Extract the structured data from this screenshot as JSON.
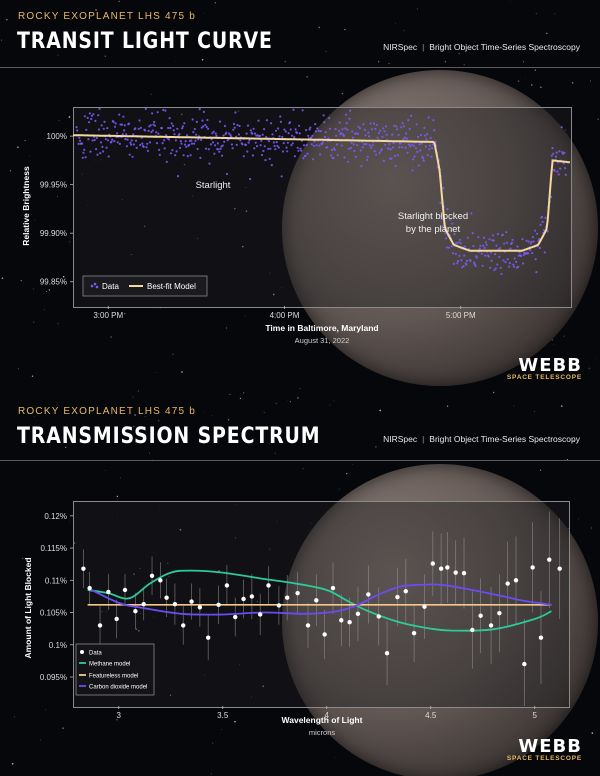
{
  "top": {
    "kicker": "ROCKY EXOPLANET LHS 475 b",
    "title": "TRANSIT LIGHT CURVE",
    "instrument": "NIRSpec",
    "mode": "Bright Object Time-Series Spectroscopy",
    "branding": {
      "name": "WEBB",
      "sub": "SPACE TELESCOPE"
    }
  },
  "bottom": {
    "kicker": "ROCKY EXOPLANET LHS 475 b",
    "title": "TRANSMISSION SPECTRUM",
    "instrument": "NIRSpec",
    "mode": "Bright Object Time-Series Spectroscopy",
    "branding": {
      "name": "WEBB",
      "sub": "SPACE TELESCOPE"
    }
  },
  "colors": {
    "data": "#7b5cff",
    "model": "#f5d7a0",
    "methane": "#2ec99a",
    "featureless": "#f5c88a",
    "co2": "#6a4cf0",
    "accent": "#e9b866"
  },
  "chart_data": [
    {
      "type": "scatter",
      "title": "Transit Light Curve",
      "xlabel": "Time in Baltimore, Maryland",
      "xsublabel": "August 31, 2022",
      "ylabel": "Relative Brightness",
      "xlim": [
        2.8,
        5.62
      ],
      "ylim": [
        99.825,
        100.03
      ],
      "xticks": [
        3.0,
        4.0,
        5.0
      ],
      "xtick_labels": [
        "3:00 PM",
        "4:00 PM",
        "5:00 PM"
      ],
      "yticks": [
        99.85,
        99.9,
        99.95,
        100.0
      ],
      "ytick_labels": [
        "99.85%",
        "99.90%",
        "99.95%",
        "100%"
      ],
      "model": {
        "name": "Best-fit Model",
        "x": [
          2.8,
          4.85,
          4.88,
          4.91,
          4.96,
          5.05,
          5.35,
          5.44,
          5.49,
          5.52,
          5.62
        ],
        "y": [
          100.001,
          99.994,
          99.965,
          99.905,
          99.888,
          99.882,
          99.882,
          99.888,
          99.905,
          99.975,
          99.973
        ]
      },
      "data_series": {
        "name": "Data",
        "n_points": 700,
        "scatter": 0.012
      },
      "annotations": [
        "Starlight",
        "Starlight blocked",
        "by the planet"
      ],
      "legend": [
        "Data",
        "Best-fit Model"
      ],
      "legend_position": "bottom-left"
    },
    {
      "type": "line",
      "title": "Transmission Spectrum",
      "xlabel": "Wavelength of Light",
      "xsublabel": "microns",
      "ylabel": "Amount of Light Blocked",
      "xlim": [
        2.78,
        5.16
      ],
      "ylim": [
        0.0905,
        0.1223
      ],
      "xticks": [
        3.0,
        3.5,
        4.0,
        4.5,
        5.0
      ],
      "xtick_labels": [
        "3",
        "3.5",
        "4",
        "4.5",
        "5"
      ],
      "yticks": [
        0.095,
        0.1,
        0.105,
        0.11,
        0.115,
        0.12
      ],
      "ytick_labels": [
        "0.095%",
        "0.1%",
        "0.105%",
        "0.11%",
        "0.115%",
        "0.12%"
      ],
      "series": [
        {
          "name": "Methane model",
          "x": [
            2.85,
            2.95,
            3.05,
            3.15,
            3.25,
            3.35,
            3.5,
            3.7,
            3.85,
            4.0,
            4.1,
            4.2,
            4.35,
            4.5,
            4.6,
            4.8,
            5.0,
            5.08
          ],
          "y": [
            0.1085,
            0.108,
            0.1072,
            0.1095,
            0.1112,
            0.1115,
            0.1112,
            0.1102,
            0.1095,
            0.1085,
            0.1068,
            0.1052,
            0.1035,
            0.1025,
            0.1022,
            0.1024,
            0.104,
            0.1052
          ]
        },
        {
          "name": "Featureless model",
          "x": [
            2.85,
            5.08
          ],
          "y": [
            0.1062,
            0.1062
          ]
        },
        {
          "name": "Carbon dioxide model",
          "x": [
            2.85,
            3.0,
            3.1,
            3.3,
            3.5,
            3.7,
            3.9,
            4.05,
            4.15,
            4.25,
            4.35,
            4.45,
            4.55,
            4.7,
            4.85,
            4.95,
            5.08
          ],
          "y": [
            0.1088,
            0.1065,
            0.1058,
            0.1048,
            0.1047,
            0.105,
            0.1048,
            0.1052,
            0.1062,
            0.1078,
            0.109,
            0.1093,
            0.1093,
            0.1085,
            0.1075,
            0.1068,
            0.1062
          ]
        }
      ],
      "data_points": {
        "x": [
          2.83,
          2.86,
          2.91,
          2.95,
          2.99,
          3.03,
          3.08,
          3.12,
          3.16,
          3.2,
          3.23,
          3.27,
          3.31,
          3.35,
          3.39,
          3.43,
          3.48,
          3.52,
          3.56,
          3.6,
          3.64,
          3.68,
          3.72,
          3.77,
          3.81,
          3.86,
          3.91,
          3.95,
          3.99,
          4.03,
          4.07,
          4.11,
          4.15,
          4.2,
          4.25,
          4.29,
          4.34,
          4.38,
          4.42,
          4.47,
          4.51,
          4.55,
          4.58,
          4.62,
          4.66,
          4.7,
          4.74,
          4.79,
          4.83,
          4.87,
          4.91,
          4.95,
          4.99,
          5.03,
          5.07,
          5.12
        ],
        "y": [
          0.1118,
          0.1088,
          0.103,
          0.1082,
          0.104,
          0.1085,
          0.1052,
          0.1063,
          0.1107,
          0.11,
          0.1073,
          0.1063,
          0.103,
          0.1067,
          0.1058,
          0.1011,
          0.1062,
          0.1092,
          0.1043,
          0.1071,
          0.1075,
          0.1047,
          0.1092,
          0.1061,
          0.1073,
          0.108,
          0.103,
          0.1069,
          0.1016,
          0.1088,
          0.1038,
          0.1035,
          0.1048,
          0.1078,
          0.1044,
          0.0987,
          0.1074,
          0.1083,
          0.1018,
          0.1059,
          0.1126,
          0.1118,
          0.112,
          0.1112,
          0.1111,
          0.1023,
          0.1045,
          0.103,
          0.1049,
          0.1095,
          0.11,
          0.097,
          0.112,
          0.1011,
          0.1132,
          0.1118
        ],
        "err": [
          0.003,
          0.0025,
          0.003,
          0.0028,
          0.003,
          0.0025,
          0.0028,
          0.0025,
          0.003,
          0.0028,
          0.003,
          0.0032,
          0.003,
          0.0028,
          0.003,
          0.0035,
          0.003,
          0.0032,
          0.003,
          0.003,
          0.0035,
          0.0032,
          0.003,
          0.003,
          0.0035,
          0.0033,
          0.0035,
          0.004,
          0.0038,
          0.004,
          0.004,
          0.0038,
          0.0042,
          0.0045,
          0.0045,
          0.005,
          0.0045,
          0.005,
          0.0045,
          0.005,
          0.005,
          0.0055,
          0.0055,
          0.005,
          0.0055,
          0.006,
          0.0058,
          0.006,
          0.006,
          0.0065,
          0.0068,
          0.007,
          0.007,
          0.0072,
          0.0075,
          0.0078
        ]
      },
      "legend": [
        "Data",
        "Methane model",
        "Featureless model",
        "Carbon dioxide model"
      ],
      "legend_position": "bottom-left"
    }
  ]
}
